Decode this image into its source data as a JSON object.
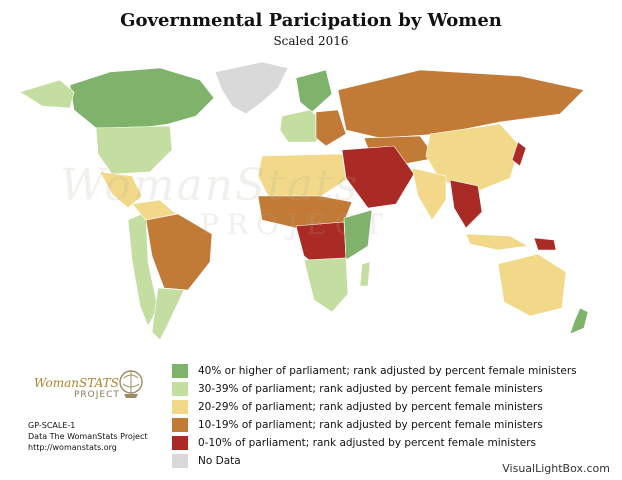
{
  "header": {
    "title": "Governmental Paricipation by Women",
    "subtitle": "Scaled 2016"
  },
  "watermark": {
    "line1": "WomanStats",
    "line2": "PROJECT"
  },
  "logo": {
    "brand": "WomanSTATS",
    "sub": "PROJECT"
  },
  "legend": {
    "items": [
      {
        "label": "40% or higher of parliament; rank adjusted by percent female ministers",
        "color": "#7fb26a"
      },
      {
        "label": "30-39% of parliament; rank adjusted by percent female ministers",
        "color": "#c4dea2"
      },
      {
        "label": "20-29% of parliament; rank adjusted by percent female ministers",
        "color": "#f2d98a"
      },
      {
        "label": "10-19% of parliament; rank adjusted by percent female ministers",
        "color": "#c27a37"
      },
      {
        "label": "0-10% of parliament; rank adjusted by percent female ministers",
        "color": "#aa2a25"
      },
      {
        "label": "No Data",
        "color": "#d9d9d9"
      }
    ]
  },
  "credit": {
    "code": "GP-SCALE-1",
    "source": "Data The WomanStats Project",
    "url": "http://womanstats.org"
  },
  "footer": {
    "brand": "VisualLightBox.com"
  }
}
